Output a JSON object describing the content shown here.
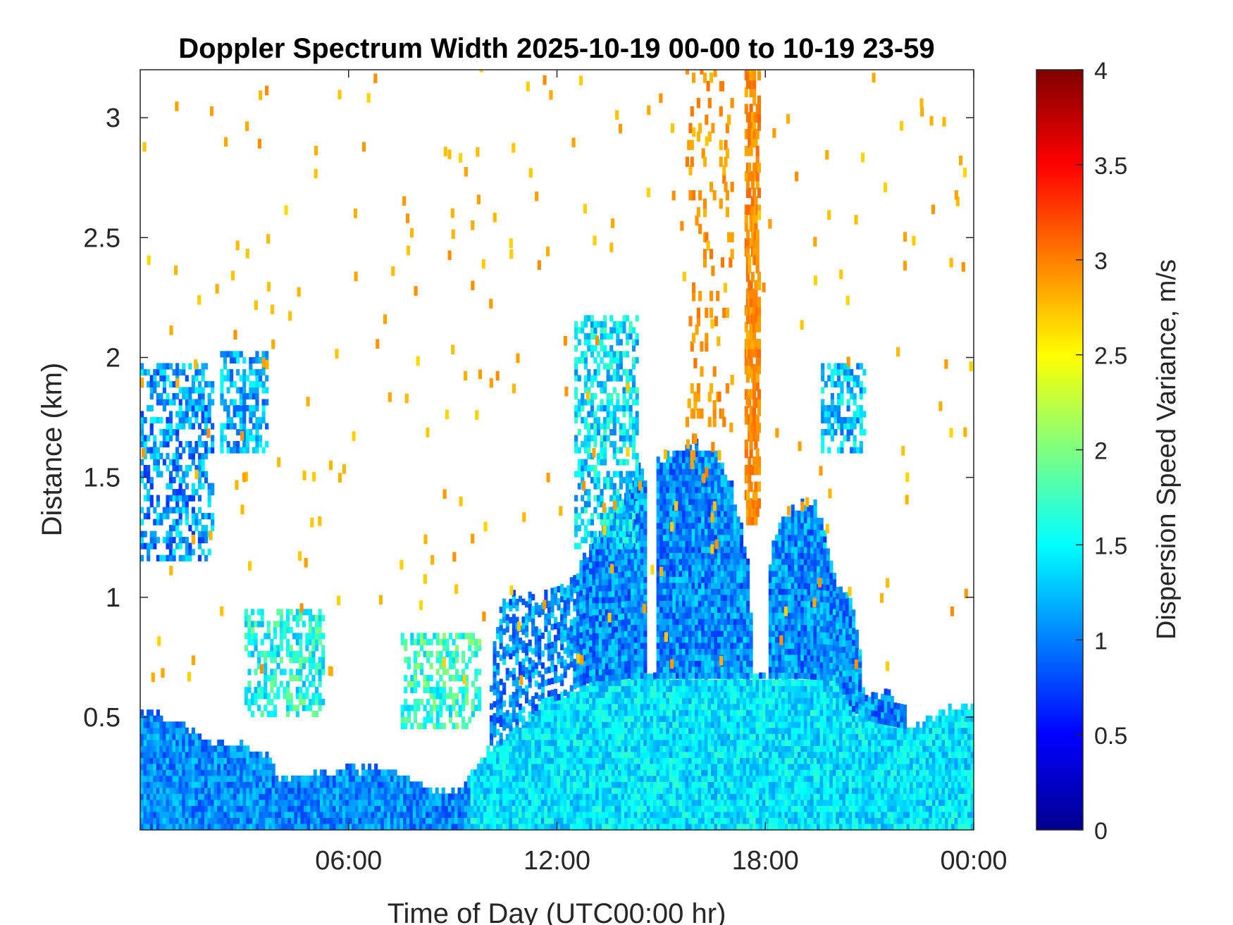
{
  "chart_data": {
    "type": "heatmap",
    "title": "Doppler Spectrum Width 2025-10-19 00-00 to 10-19 23-59",
    "xlabel": "Time of Day (UTC00:00 hr)",
    "ylabel": "Distance (km)",
    "colorbar_label": "Dispersion Speed Variance, m/s",
    "colormap": "jet",
    "xlim": [
      0,
      24
    ],
    "ylim": [
      0.03,
      3.2
    ],
    "clim": [
      0,
      4
    ],
    "x_ticks": [
      {
        "value": 6,
        "label": "06:00"
      },
      {
        "value": 12,
        "label": "12:00"
      },
      {
        "value": 18,
        "label": "18:00"
      },
      {
        "value": 24,
        "label": "00:00"
      }
    ],
    "y_ticks": [
      {
        "value": 0.5,
        "label": "0.5"
      },
      {
        "value": 1,
        "label": "1"
      },
      {
        "value": 1.5,
        "label": "1.5"
      },
      {
        "value": 2,
        "label": "2"
      },
      {
        "value": 2.5,
        "label": "2.5"
      },
      {
        "value": 3,
        "label": "3"
      }
    ],
    "colorbar_ticks": [
      {
        "value": 0,
        "label": "0"
      },
      {
        "value": 0.5,
        "label": "0.5"
      },
      {
        "value": 1,
        "label": "1"
      },
      {
        "value": 1.5,
        "label": "1.5"
      },
      {
        "value": 2,
        "label": "2"
      },
      {
        "value": 2.5,
        "label": "2.5"
      },
      {
        "value": 3,
        "label": "3"
      },
      {
        "value": 3.5,
        "label": "3.5"
      },
      {
        "value": 4,
        "label": "4"
      }
    ],
    "region_top_profile": [
      [
        0.0,
        0.5
      ],
      [
        0.5,
        0.5
      ],
      [
        1.0,
        0.48
      ],
      [
        1.5,
        0.42
      ],
      [
        2.0,
        0.38
      ],
      [
        3.0,
        0.37
      ],
      [
        3.6,
        0.33
      ],
      [
        4.0,
        0.23
      ],
      [
        5.0,
        0.25
      ],
      [
        6.0,
        0.27
      ],
      [
        7.0,
        0.28
      ],
      [
        7.5,
        0.25
      ],
      [
        8.0,
        0.2
      ],
      [
        9.0,
        0.18
      ],
      [
        9.5,
        0.25
      ],
      [
        10.0,
        0.35
      ],
      [
        10.5,
        0.4
      ],
      [
        11.0,
        0.47
      ],
      [
        11.5,
        0.55
      ],
      [
        12.0,
        0.57
      ],
      [
        12.5,
        0.62
      ],
      [
        13.0,
        0.65
      ],
      [
        13.5,
        0.65
      ],
      [
        14.0,
        0.66
      ],
      [
        15.0,
        0.66
      ],
      [
        16.0,
        0.66
      ],
      [
        17.0,
        0.66
      ],
      [
        18.0,
        0.66
      ],
      [
        19.0,
        0.66
      ],
      [
        20.0,
        0.65
      ],
      [
        20.5,
        0.52
      ],
      [
        21.0,
        0.48
      ],
      [
        22.0,
        0.45
      ],
      [
        23.0,
        0.5
      ],
      [
        24.0,
        0.55
      ]
    ],
    "upper_profile": [
      [
        10.0,
        0.45
      ],
      [
        10.2,
        0.9
      ],
      [
        10.5,
        1.0
      ],
      [
        11.0,
        0.98
      ],
      [
        11.5,
        0.98
      ],
      [
        12.0,
        1.02
      ],
      [
        12.5,
        1.08
      ],
      [
        13.0,
        1.2
      ],
      [
        13.5,
        1.35
      ],
      [
        14.0,
        1.45
      ],
      [
        14.3,
        1.55
      ],
      [
        14.5,
        1.5
      ],
      [
        14.55,
        0.65
      ],
      [
        14.8,
        0.65
      ],
      [
        14.85,
        1.55
      ],
      [
        15.5,
        1.6
      ],
      [
        16.0,
        1.62
      ],
      [
        16.5,
        1.6
      ],
      [
        17.0,
        1.45
      ],
      [
        17.5,
        1.1
      ],
      [
        17.6,
        0.65
      ],
      [
        18.0,
        0.65
      ],
      [
        18.1,
        1.2
      ],
      [
        18.5,
        1.32
      ],
      [
        19.0,
        1.38
      ],
      [
        19.5,
        1.35
      ],
      [
        20.0,
        1.05
      ],
      [
        20.5,
        0.95
      ],
      [
        20.8,
        0.6
      ],
      [
        22.0,
        0.55
      ]
    ],
    "patches": [
      {
        "x": [
          0.0,
          2.1
        ],
        "y": [
          1.15,
          1.95
        ],
        "mean": 1.1
      },
      {
        "x": [
          2.3,
          3.6
        ],
        "y": [
          1.6,
          2.0
        ],
        "mean": 1.2
      },
      {
        "x": [
          3.0,
          5.3
        ],
        "y": [
          0.5,
          0.95
        ],
        "mean": 1.6
      },
      {
        "x": [
          7.5,
          9.8
        ],
        "y": [
          0.45,
          0.85
        ],
        "mean": 1.7
      },
      {
        "x": [
          12.5,
          14.3
        ],
        "y": [
          1.2,
          2.15
        ],
        "mean": 1.4
      },
      {
        "x": [
          19.6,
          20.8
        ],
        "y": [
          1.6,
          1.95
        ],
        "mean": 1.3
      }
    ],
    "orange_band": {
      "x": [
        17.4,
        17.8
      ],
      "y": [
        1.3,
        3.2
      ],
      "mean": 2.95
    },
    "orange_scatter_zone": {
      "x": [
        15.7,
        17.0
      ],
      "y": [
        1.5,
        3.2
      ],
      "mean": 2.9
    },
    "sparse_noise_value": 2.8
  }
}
